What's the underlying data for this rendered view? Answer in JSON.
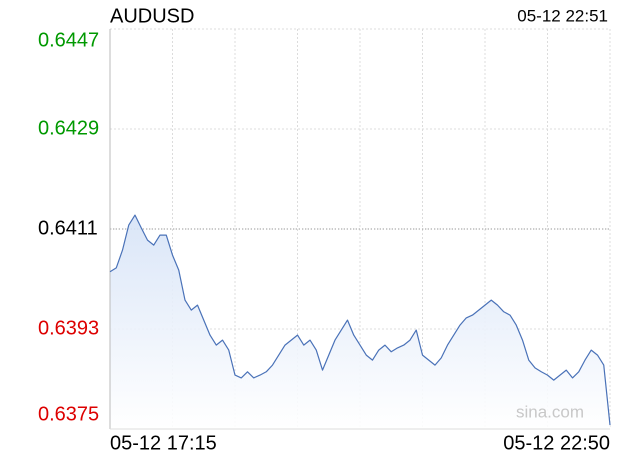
{
  "chart_data": {
    "type": "line",
    "title": "AUDUSD",
    "timestamp": "05-12 22:51",
    "watermark": "sina.com",
    "categories": [
      "05-12 17:15",
      null,
      null,
      null,
      null,
      null,
      null,
      null,
      null,
      null,
      null,
      null,
      null,
      null,
      null,
      null,
      null,
      null,
      null,
      null,
      null,
      null,
      null,
      null,
      null,
      null,
      null,
      null,
      null,
      null,
      null,
      null,
      null,
      null,
      null,
      null,
      null,
      null,
      null,
      null,
      null,
      null,
      null,
      null,
      null,
      null,
      null,
      null,
      null,
      null,
      null,
      null,
      null,
      null,
      null,
      null,
      null,
      null,
      null,
      null,
      null,
      null,
      null,
      null,
      null,
      null,
      null,
      null,
      null,
      null,
      null,
      null,
      null,
      null,
      null,
      null,
      null,
      null,
      null,
      null,
      "05-12 22:50"
    ],
    "series": [
      {
        "name": "AUDUSD",
        "color": "#4a72b8",
        "values": [
          0.64033,
          0.6404,
          0.64072,
          0.64117,
          0.64135,
          0.64112,
          0.6409,
          0.64081,
          0.64099,
          0.64099,
          0.64063,
          0.64036,
          0.63982,
          0.63964,
          0.63973,
          0.63946,
          0.63919,
          0.63901,
          0.6391,
          0.63892,
          0.63847,
          0.63842,
          0.63853,
          0.63842,
          0.63847,
          0.63853,
          0.63865,
          0.63883,
          0.63901,
          0.6391,
          0.63919,
          0.63901,
          0.6391,
          0.63892,
          0.63856,
          0.63883,
          0.6391,
          0.63928,
          0.63946,
          0.63919,
          0.63901,
          0.63883,
          0.63874,
          0.63892,
          0.63901,
          0.63889,
          0.63896,
          0.63901,
          0.6391,
          0.63928,
          0.63883,
          0.63874,
          0.63865,
          0.63878,
          0.63901,
          0.63919,
          0.63937,
          0.6395,
          0.63955,
          0.63964,
          0.63973,
          0.63982,
          0.63973,
          0.63961,
          0.63955,
          0.63937,
          0.6391,
          0.63874,
          0.6386,
          0.63853,
          0.63847,
          0.63838,
          0.63847,
          0.63856,
          0.63842,
          0.63853,
          0.63874,
          0.63892,
          0.63883,
          0.63865,
          0.63757
        ]
      }
    ],
    "ylim": [
      0.6375,
      0.6447
    ],
    "yticks": [
      0.6375,
      0.6393,
      0.6411,
      0.6429,
      0.6447
    ],
    "baseline": 0.6411,
    "tick_colors": {
      "up": "#009900",
      "down": "#dd0000",
      "flat": "#000000"
    },
    "area_fill": true,
    "grid": true
  }
}
